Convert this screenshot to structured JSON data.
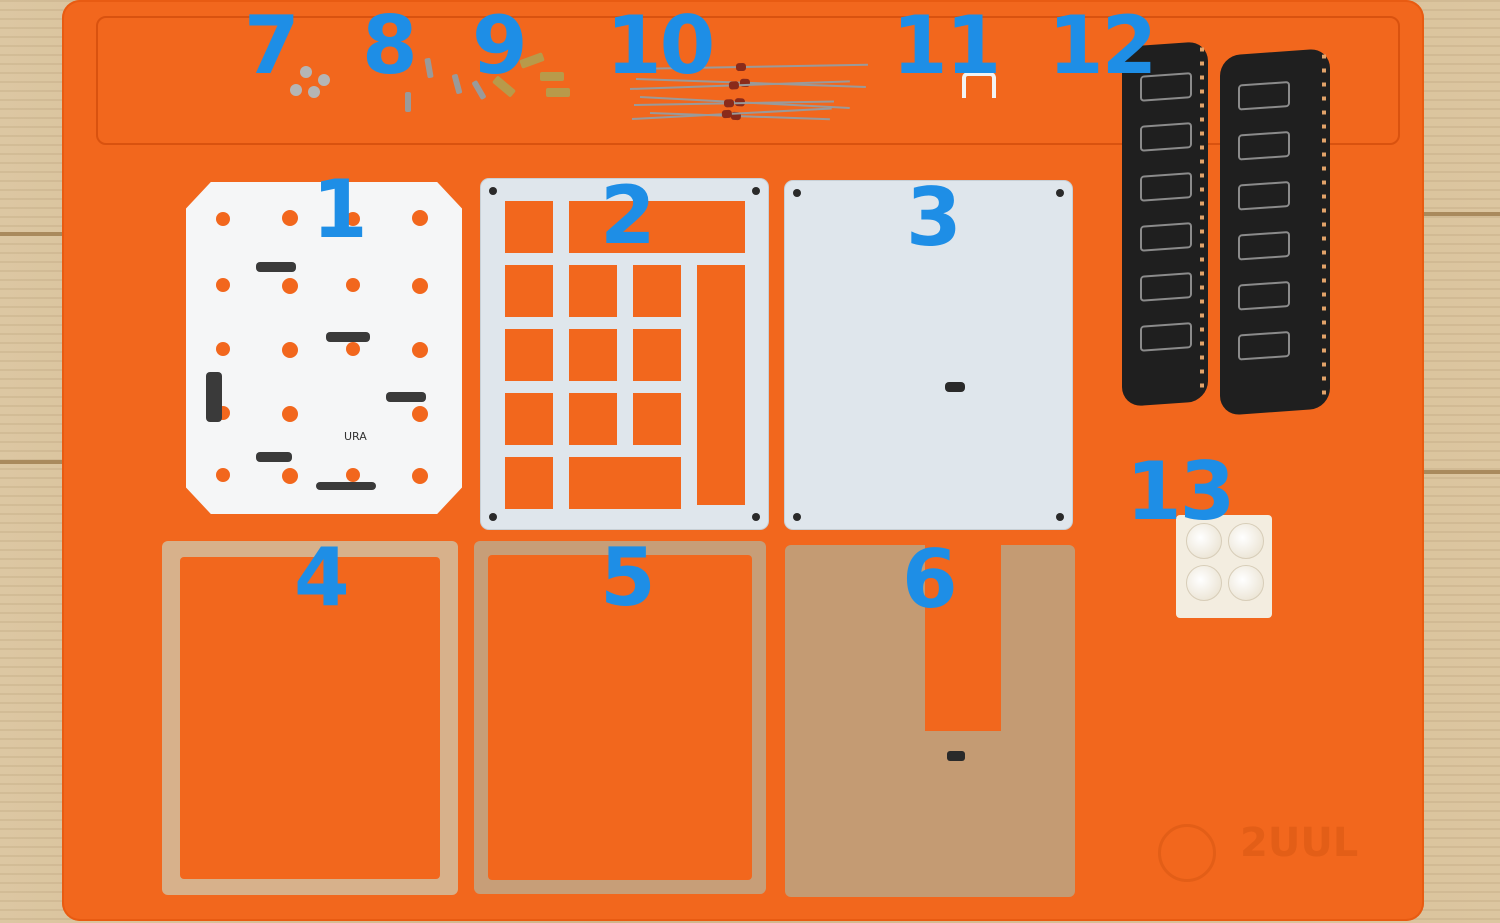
{
  "scene": {
    "description_colors": {
      "mat": "#f2671d",
      "label": "#1e8ee6",
      "wood": "#d8c39e"
    },
    "part_numbers": [
      "1",
      "2",
      "3",
      "4",
      "5",
      "6",
      "7",
      "8",
      "9",
      "10",
      "11",
      "12",
      "13"
    ],
    "pcb_label": "URA",
    "brand_text": "2UUL"
  }
}
